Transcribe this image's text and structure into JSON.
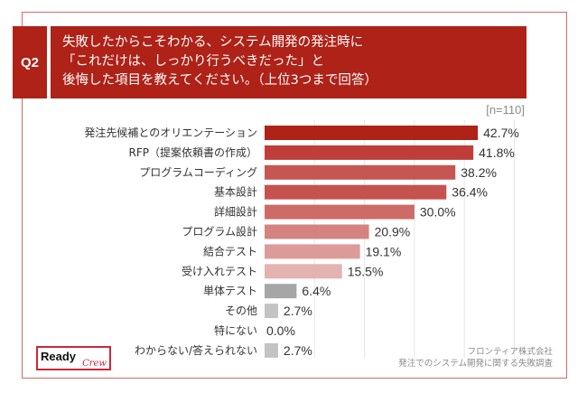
{
  "question": {
    "number": "Q2",
    "lines": [
      "失敗したからこそわかる、システム開発の発注時に",
      "「これだけは、しっかり行うべきだった」と",
      "後悔した項目を教えてください。（上位3つまで回答）"
    ]
  },
  "sample_size": "[n=110]",
  "source": {
    "line1": "フロンティア株式会社",
    "line2": "発注でのシステム開発に関する失敗調査"
  },
  "logo": {
    "primary": "Ready",
    "secondary": "Crew"
  },
  "colors": {
    "header_bg": "#ae2218",
    "frame": "#d46a6a",
    "gridline": "#e6e6e6"
  },
  "chart_data": {
    "type": "bar",
    "orientation": "horizontal",
    "title": "失敗したからこそわかる、システム開発の発注時に「これだけは、しっかり行うべきだった」と後悔した項目を教えてください。（上位3つまで回答）",
    "xlabel": "",
    "ylabel": "",
    "xlim": [
      0,
      50
    ],
    "grid": true,
    "unit": "%",
    "categories": [
      "発注先候補とのオリエンテーション",
      "RFP（提案依頼書の作成）",
      "プログラムコーディング",
      "基本設計",
      "詳細設計",
      "プログラム設計",
      "結合テスト",
      "受け入れテスト",
      "単体テスト",
      "その他",
      "特にない",
      "わからない/答えられない"
    ],
    "values": [
      42.7,
      41.8,
      38.2,
      36.4,
      30.0,
      20.9,
      19.1,
      15.5,
      6.4,
      2.7,
      0.0,
      2.7
    ],
    "value_labels": [
      "42.7%",
      "41.8%",
      "38.2%",
      "36.4%",
      "30.0%",
      "20.9%",
      "19.1%",
      "15.5%",
      "6.4%",
      "2.7%",
      "0.0%",
      "2.7%"
    ],
    "bar_colors": [
      "#ae2218",
      "#bf3e39",
      "#c65652",
      "#c5524e",
      "#cd6b67",
      "#d5837f",
      "#dc9b98",
      "#e4b2b0",
      "#a6a6a6",
      "#c3c3c3",
      "#c3c3c3",
      "#c3c3c3"
    ]
  }
}
